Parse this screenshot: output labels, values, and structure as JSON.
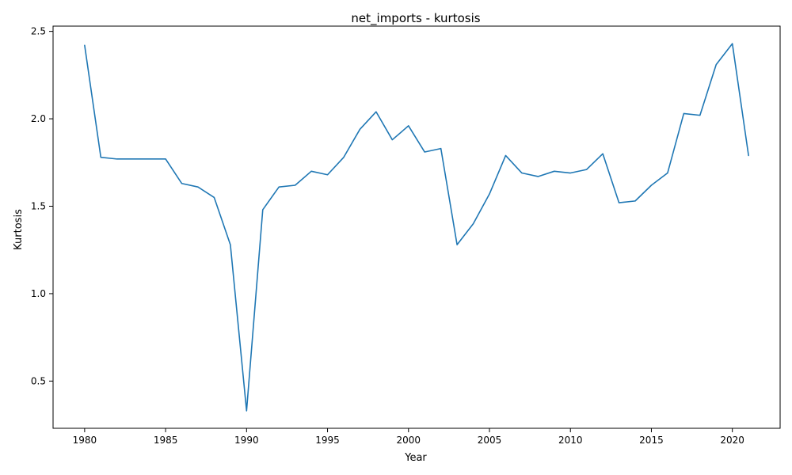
{
  "chart_data": {
    "type": "line",
    "title": "net_imports - kurtosis",
    "xlabel": "Year",
    "ylabel": "Kurtosis",
    "xlim": [
      1978.05,
      2022.95
    ],
    "ylim": [
      0.23,
      2.53
    ],
    "xticks": [
      1980,
      1985,
      1990,
      1995,
      2000,
      2005,
      2010,
      2015,
      2020
    ],
    "yticks": [
      0.5,
      1.0,
      1.5,
      2.0,
      2.5
    ],
    "ytick_labels": [
      "0.5",
      "1.0",
      "1.5",
      "2.0",
      "2.5"
    ],
    "grid": false,
    "legend": "none",
    "series": [
      {
        "color": "#1f77b4",
        "x": [
          1980,
          1981,
          1982,
          1983,
          1984,
          1985,
          1986,
          1987,
          1988,
          1989,
          1990,
          1991,
          1992,
          1993,
          1994,
          1995,
          1996,
          1997,
          1998,
          1999,
          2000,
          2001,
          2002,
          2003,
          2004,
          2005,
          2006,
          2007,
          2008,
          2009,
          2010,
          2011,
          2012,
          2013,
          2014,
          2015,
          2016,
          2017,
          2018,
          2019,
          2020,
          2021
        ],
        "y": [
          2.42,
          1.78,
          1.77,
          1.77,
          1.77,
          1.77,
          1.63,
          1.61,
          1.55,
          1.28,
          0.33,
          1.48,
          1.61,
          1.62,
          1.7,
          1.68,
          1.78,
          1.94,
          2.04,
          1.88,
          1.96,
          1.81,
          1.83,
          1.28,
          1.4,
          1.57,
          1.79,
          1.69,
          1.67,
          1.7,
          1.69,
          1.71,
          1.8,
          1.52,
          1.53,
          1.62,
          1.69,
          2.03,
          2.02,
          2.31,
          2.43,
          1.79
        ]
      }
    ]
  }
}
